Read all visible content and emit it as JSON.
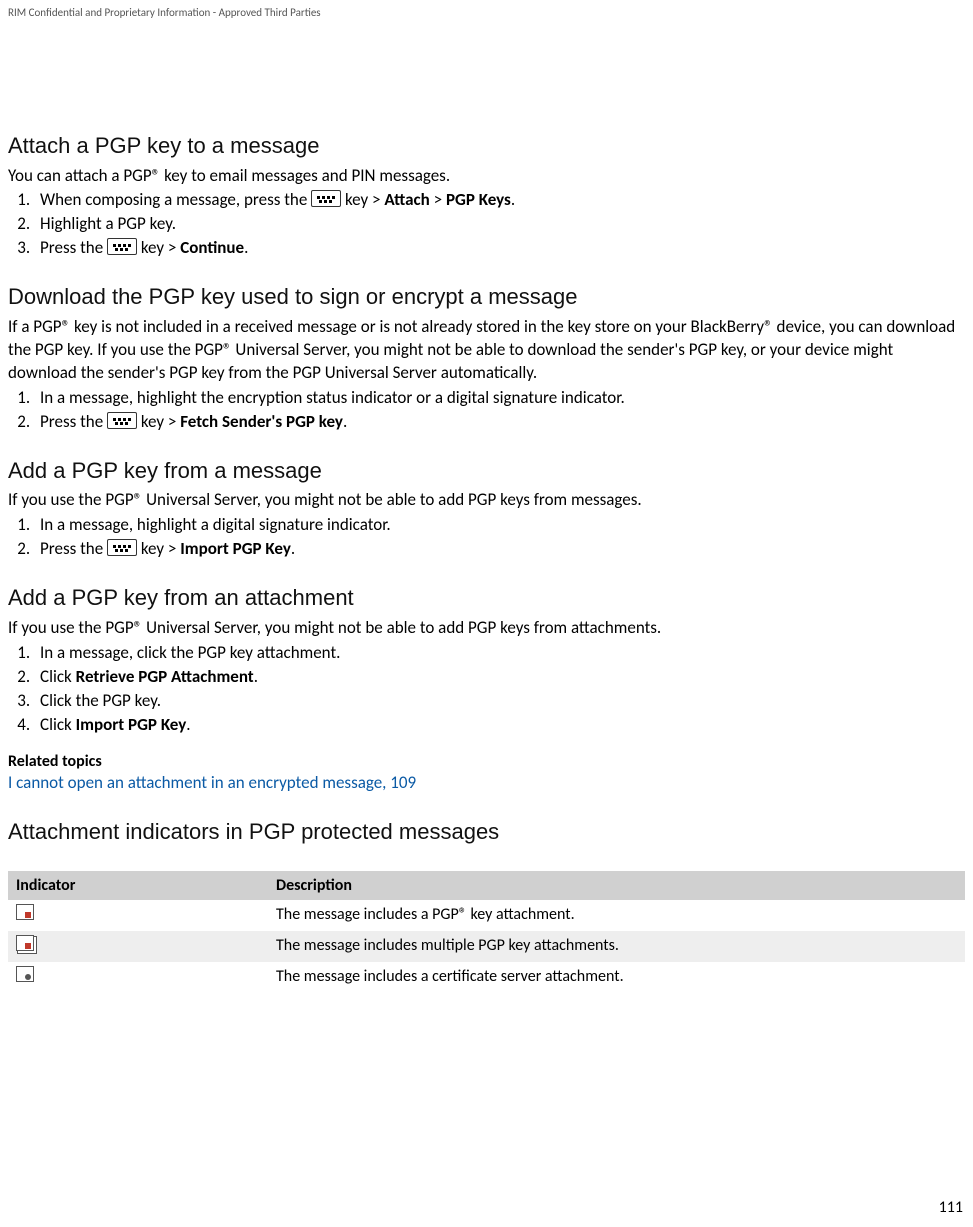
{
  "header_note": "RIM Confidential and Proprietary Information - Approved Third Parties",
  "page_number": "111",
  "sections": {
    "attach": {
      "title": "Attach a PGP key to a message",
      "intro": "You can attach a PGP® key to email messages and PIN messages.",
      "step1_a": "When composing a message, press the ",
      "step1_b": " key > ",
      "step1_attach": "Attach",
      "step1_sep": " > ",
      "step1_pgpkeys": "PGP Keys",
      "step1_end": ".",
      "step2": "Highlight a PGP key.",
      "step3_a": "Press the ",
      "step3_b": " key > ",
      "step3_cont": "Continue",
      "step3_end": "."
    },
    "download": {
      "title": "Download the PGP key used to sign or encrypt a message",
      "intro": "If a PGP® key is not included in a received message or is not already stored in the key store on your BlackBerry® device, you can download the PGP key. If you use the PGP® Universal Server, you might not be able to download the sender's PGP key, or your device might download the sender's PGP key from the PGP Universal Server automatically.",
      "step1": "In a message, highlight the encryption status indicator or a digital signature indicator.",
      "step2_a": "Press the ",
      "step2_b": " key > ",
      "step2_fetch": "Fetch Sender's PGP key",
      "step2_end": "."
    },
    "addmsg": {
      "title": "Add a PGP key from a message",
      "intro": "If you use the PGP® Universal Server, you might not be able to add PGP keys from messages.",
      "step1": "In a message, highlight a digital signature indicator.",
      "step2_a": "Press the ",
      "step2_b": " key > ",
      "step2_import": "Import PGP Key",
      "step2_end": "."
    },
    "addatt": {
      "title": "Add a PGP key from an attachment",
      "intro": "If you use the PGP® Universal Server, you might not be able to add PGP keys from attachments.",
      "step1": "In a message, click the PGP key attachment.",
      "step2_a": "Click ",
      "step2_retrieve": "Retrieve PGP Attachment",
      "step2_end": ".",
      "step3": "Click the PGP key.",
      "step4_a": "Click ",
      "step4_import": "Import PGP Key",
      "step4_end": "."
    },
    "related": {
      "heading": "Related topics",
      "link": "I cannot open an attachment in an encrypted message, 109"
    },
    "indicators": {
      "title": "Attachment indicators in PGP protected messages",
      "col_indicator": "Indicator",
      "col_description": "Description",
      "rows": [
        "The message includes a PGP® key attachment.",
        "The message includes multiple PGP key attachments.",
        "The message includes a certificate server attachment."
      ]
    }
  }
}
